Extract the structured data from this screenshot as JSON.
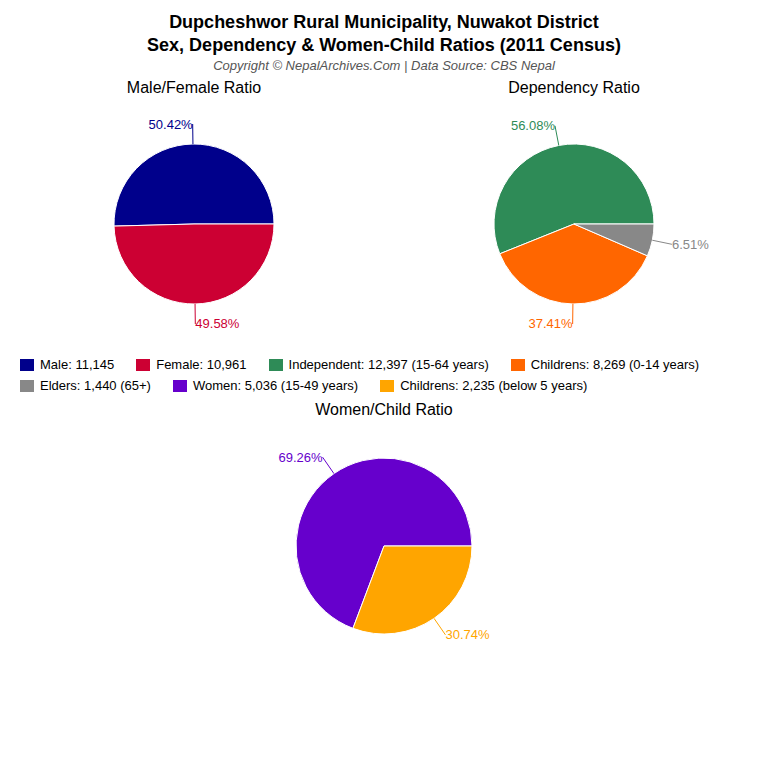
{
  "title": "Dupcheshwor Rural Municipality, Nuwakot District",
  "subtitle": "Sex, Dependency & Women-Child Ratios (2011 Census)",
  "annotations": [
    "Copyright © NepalArchives.Com | Data Source: CBS Nepal"
  ],
  "chart_data": [
    {
      "type": "pie",
      "title": "Male/Female Ratio",
      "categories": [
        "Male: 11,145",
        "Female: 10,961"
      ],
      "values": [
        50.42,
        49.58
      ],
      "value_labels": [
        "50.42%",
        "49.58%"
      ],
      "colors": [
        "#00008B",
        "#CC0033"
      ],
      "data_labels": true
    },
    {
      "type": "pie",
      "title": "Dependency Ratio",
      "categories": [
        "Independent: 12,397 (15-64 years)",
        "Childrens: 8,269 (0-14 years)",
        "Elders: 1,440 (65+)"
      ],
      "values": [
        56.08,
        37.41,
        6.51
      ],
      "value_labels": [
        "56.08%",
        "37.41%",
        "6.51%"
      ],
      "colors": [
        "#2E8B57",
        "#FF6600",
        "#888888"
      ],
      "data_labels": true
    },
    {
      "type": "pie",
      "title": "Women/Child Ratio",
      "categories": [
        "Women: 5,036 (15-49 years)",
        "Childrens: 2,235 (below 5 years)"
      ],
      "values": [
        69.26,
        30.74
      ],
      "value_labels": [
        "69.26%",
        "30.74%"
      ],
      "colors": [
        "#6600CC",
        "#FFA500"
      ],
      "data_labels": true
    }
  ]
}
